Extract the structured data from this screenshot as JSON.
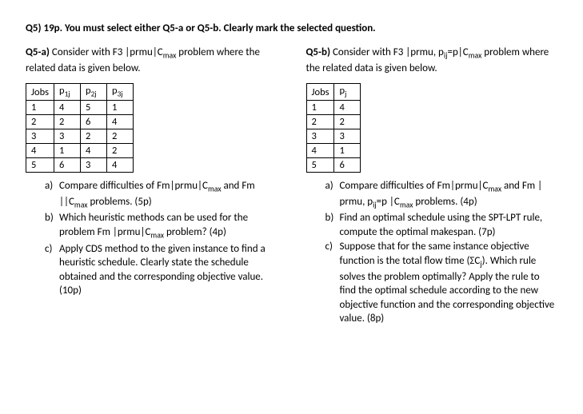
{
  "header": "Q5) 19p. You must select either Q5-a or Q5-b. Clearly mark the selected question.",
  "left": {
    "title_label": "Q5-a)",
    "intro_a": " Consider with F3 |prmu|C",
    "intro_b": " problem where the related data is given below.",
    "cmax_sub": "max",
    "table": {
      "headers": [
        "Jobs",
        "p1j",
        "p2j",
        "p3j"
      ],
      "subheaders_html": [
        "Jobs",
        "p<sub>1j</sub>",
        "p<sub>2j</sub>",
        "p<sub>3j</sub>"
      ],
      "rows": [
        [
          "1",
          "4",
          "5",
          "1"
        ],
        [
          "2",
          "2",
          "6",
          "4"
        ],
        [
          "3",
          "3",
          "2",
          "2"
        ],
        [
          "4",
          "1",
          "4",
          "2"
        ],
        [
          "5",
          "6",
          "3",
          "4"
        ]
      ]
    },
    "parts": {
      "a": "Compare difficulties of Fm|prmu|Cmax and Fm ||Cmax problems. (5p)",
      "b": "Which heuristic methods can be used for the problem Fm |prmu|Cmax problem? (4p)",
      "c": "Apply CDS method to the given instance to find a heuristic schedule. Clearly state the schedule obtained and the corresponding objective value. (10p)"
    }
  },
  "right": {
    "title_label": "Q5-b)",
    "intro_a": " Consider with F3 |prmu, p",
    "intro_mid": "=p|C",
    "intro_b": " problem where the related data is given below.",
    "pij_sub": "ij",
    "cmax_sub": "max",
    "table": {
      "headers": [
        "Jobs",
        "pj"
      ],
      "rows": [
        [
          "1",
          "4"
        ],
        [
          "2",
          "2"
        ],
        [
          "3",
          "3"
        ],
        [
          "4",
          "1"
        ],
        [
          "5",
          "6"
        ]
      ]
    },
    "parts": {
      "a": "Compare difficulties of Fm|prmu|Cmax and Fm | prmu, pij=p |Cmax problems. (4p)",
      "b": "Find an optimal schedule using the SPT-LPT rule, compute the optimal makespan. (7p)",
      "c": "Suppose that for the same instance objective function is the total flow time (ΣCj). Which rule solves the problem optimally? Apply the rule to find the optimal schedule according to the new objective function and the corresponding objective value. (8p)"
    }
  }
}
